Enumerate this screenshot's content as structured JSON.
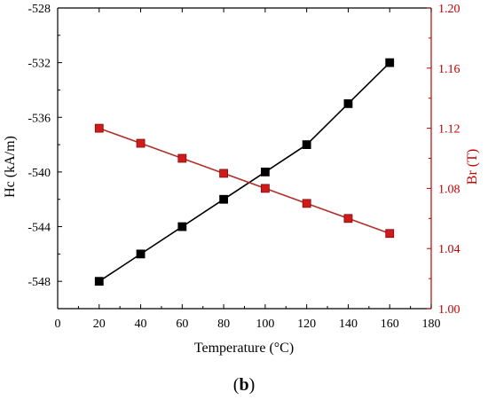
{
  "panel_label": "(b)",
  "colors": {
    "left_axis": "#000000",
    "right_axis": "#c00000",
    "hc_line": "#000000",
    "hc_marker": "#000000",
    "br_line": "#b0302a",
    "br_marker": "#d11a1a"
  },
  "chart_data": {
    "type": "line",
    "xlabel": "Temperature (°C)",
    "xlim": [
      0,
      180
    ],
    "xticks": [
      0,
      20,
      40,
      60,
      80,
      100,
      120,
      140,
      160,
      180
    ],
    "x": [
      20,
      40,
      60,
      80,
      100,
      120,
      140,
      160
    ],
    "y_left": {
      "label": "Hc (kA/m)",
      "lim": [
        -550,
        -528
      ],
      "ticks": [
        -548,
        -544,
        -540,
        -536,
        -532,
        -528
      ],
      "tick_labels": [
        "-548",
        "-544",
        "-540",
        "-536",
        "-532",
        "-528"
      ]
    },
    "y_right": {
      "label": "Br (T)",
      "lim": [
        1.0,
        1.2
      ],
      "ticks": [
        1.0,
        1.04,
        1.08,
        1.12,
        1.16,
        1.2
      ],
      "tick_labels": [
        "1.00",
        "1.04",
        "1.08",
        "1.12",
        "1.16",
        "1.20"
      ]
    },
    "series": [
      {
        "axis": "left",
        "values": [
          -548,
          -546,
          -544,
          -542,
          -540,
          -538,
          -535,
          -532
        ]
      },
      {
        "axis": "right",
        "values": [
          1.12,
          1.11,
          1.1,
          1.09,
          1.08,
          1.07,
          1.06,
          1.05
        ]
      }
    ],
    "grid": false
  }
}
